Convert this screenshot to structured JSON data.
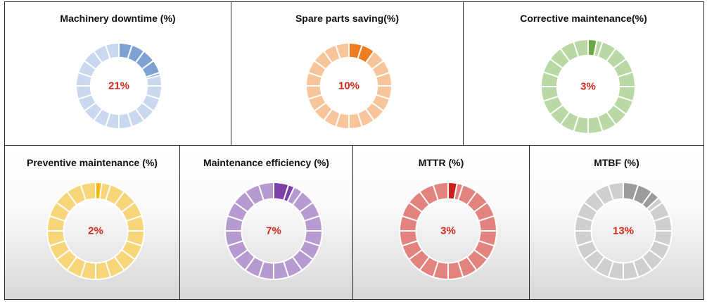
{
  "chart_data": [
    {
      "type": "pie",
      "title": "Machinery downtime (%)",
      "value": 21,
      "value_label": "21%",
      "colors": {
        "highlight": "#7fa2d4",
        "base": "#c9d8ee"
      }
    },
    {
      "type": "pie",
      "title": "Spare parts saving(%)",
      "value": 10,
      "value_label": "10%",
      "colors": {
        "highlight": "#ee7d22",
        "base": "#f8c59a"
      }
    },
    {
      "type": "pie",
      "title": "Corrective maintenance(%)",
      "value": 3,
      "value_label": "3%",
      "colors": {
        "highlight": "#6aa843",
        "base": "#b8d9a3"
      }
    },
    {
      "type": "pie",
      "title": "Preventive maintenance (%)",
      "value": 2,
      "value_label": "2%",
      "colors": {
        "highlight": "#f6b800",
        "base": "#f7d67a"
      }
    },
    {
      "type": "pie",
      "title": "Maintenance efficiency (%)",
      "value": 7,
      "value_label": "7%",
      "colors": {
        "highlight": "#7b3fa6",
        "base": "#b79bd0"
      }
    },
    {
      "type": "pie",
      "title": "MTTR (%)",
      "value": 3,
      "value_label": "3%",
      "colors": {
        "highlight": "#c8201e",
        "base": "#e2837d"
      }
    },
    {
      "type": "pie",
      "title": "MTBF (%)",
      "value": 13,
      "value_label": "13%",
      "colors": {
        "highlight": "#9c9c9c",
        "base": "#cfcfcf"
      }
    }
  ],
  "label_color": "#d42a1c"
}
